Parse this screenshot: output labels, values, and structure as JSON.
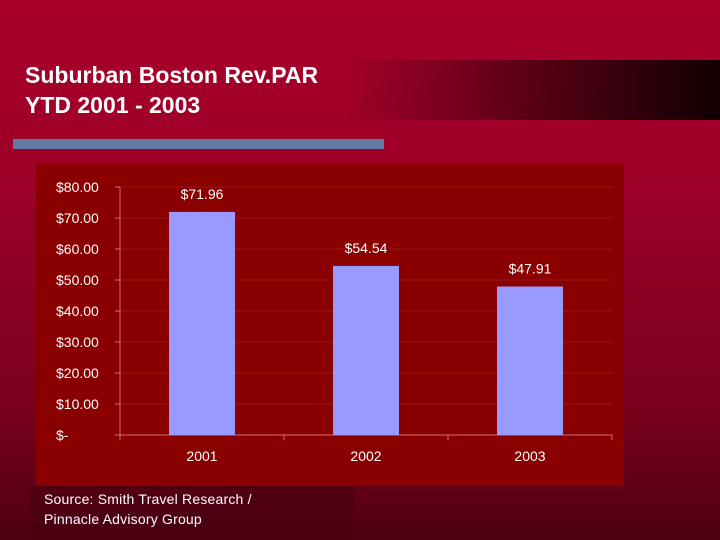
{
  "slide": {
    "title_line1": "Suburban Boston Rev.PAR",
    "title_line2": "YTD 2001 - 2003",
    "source_line1": "Source: Smith Travel Research /",
    "source_line2": "Pinnacle Advisory Group"
  },
  "colors": {
    "background": "#a8002a",
    "chart_panel": "#8a0000",
    "bar": "#9999ff",
    "rule": "#617aa6",
    "text": "#ffffff"
  },
  "chart_data": {
    "type": "bar",
    "categories": [
      "2001",
      "2002",
      "2003"
    ],
    "values": [
      71.96,
      54.54,
      47.91
    ],
    "data_labels": [
      "$71.96",
      "$54.54",
      "$47.91"
    ],
    "y_ticks": [
      0,
      10,
      20,
      30,
      40,
      50,
      60,
      70,
      80
    ],
    "y_tick_labels": [
      "$-",
      "$10.00",
      "$20.00",
      "$30.00",
      "$40.00",
      "$50.00",
      "$60.00",
      "$70.00",
      "$80.00"
    ],
    "ylim": [
      0,
      80
    ],
    "title": "",
    "xlabel": "",
    "ylabel": "",
    "grid": true,
    "legend": "none"
  }
}
